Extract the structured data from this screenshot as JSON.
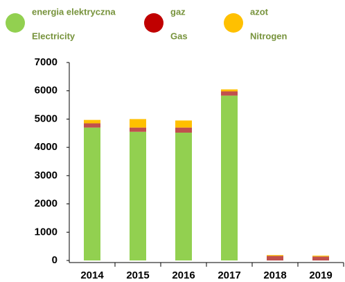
{
  "chart_data": {
    "type": "stacked_bar",
    "categories": [
      "2014",
      "2015",
      "2016",
      "2017",
      "2018",
      "2019"
    ],
    "series": [
      {
        "name": "energia elektryczna",
        "name_en": "Electricity",
        "color": "#92d050",
        "legend_color": "#92d050",
        "values": [
          4700,
          4550,
          4520,
          5830,
          0,
          0
        ]
      },
      {
        "name": "gaz",
        "name_en": "Gas",
        "color": "#c0504d",
        "legend_color": "#c00000",
        "values": [
          150,
          150,
          180,
          150,
          160,
          140
        ]
      },
      {
        "name": "azot",
        "name_en": "Nitrogen",
        "color": "#ffc000",
        "legend_color": "#ffc000",
        "values": [
          120,
          300,
          250,
          70,
          30,
          30
        ]
      }
    ],
    "ylim": [
      0,
      7000
    ],
    "yticks": [
      0,
      1000,
      2000,
      3000,
      4000,
      5000,
      6000,
      7000
    ],
    "grid": false
  }
}
